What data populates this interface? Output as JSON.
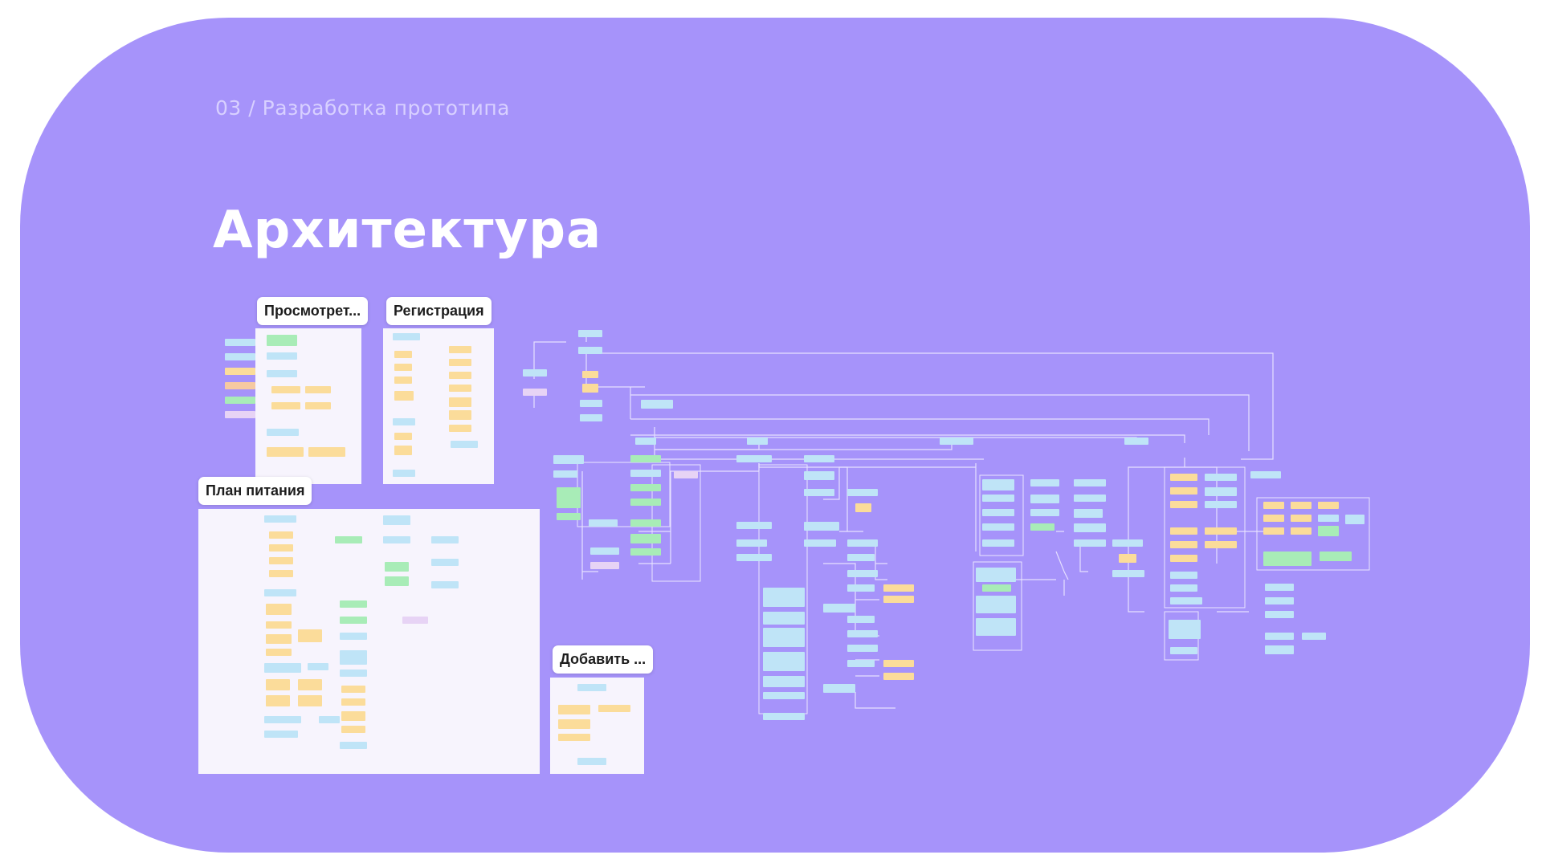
{
  "breadcrumb": "03 / Разработка прототипа",
  "title": "Архитектура",
  "frames": {
    "view": "Просмотрет...",
    "registration": "Регистрация",
    "meal_plan": "План питания",
    "add": "Добавить ..."
  },
  "colors": {
    "background": "#a693fa",
    "node_blue": "#bfe4f7",
    "node_yellow": "#fbdc9a",
    "node_green": "#a8ecb7",
    "node_purple": "#e7d3f5",
    "panel": "#f7f4fd"
  }
}
